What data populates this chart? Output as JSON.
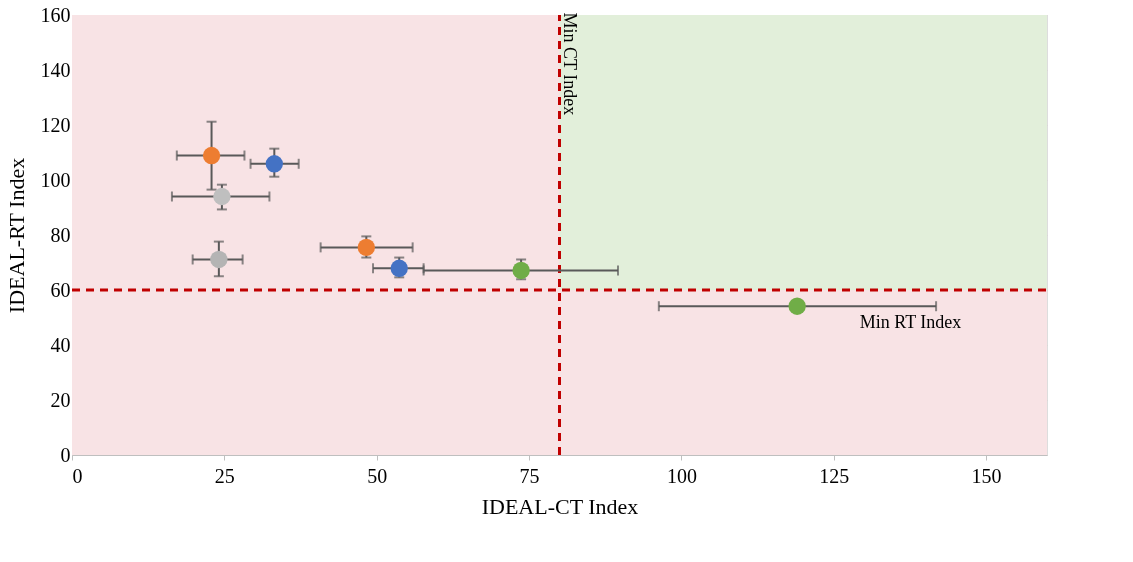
{
  "chart_data": {
    "type": "scatter",
    "xlabel": "IDEAL-CT Index",
    "ylabel": "IDEAL-RT Index",
    "x": [
      22.9,
      33.2,
      24.6,
      24.1,
      48.3,
      53.7,
      73.7,
      119.0
    ],
    "values": [
      108.9,
      105.9,
      94.0,
      71.1,
      75.5,
      67.9,
      67.1,
      54.1
    ],
    "colors": [
      "#ed7d31",
      "#4472c4",
      "#bfbfbf",
      "#b4b4b4",
      "#ed7d31",
      "#4472c4",
      "#70ad47",
      "#70ad47"
    ],
    "errors": [
      [
        96.5,
        121.2
      ],
      [
        101.2,
        111.4
      ],
      [
        89.3,
        98.3
      ],
      [
        65.0,
        77.6
      ],
      [
        71.8,
        79.5
      ],
      [
        64.6,
        71.8
      ],
      [
        63.9,
        71.1
      ],
      null
    ],
    "xerrors": [
      [
        17.2,
        28.3
      ],
      [
        29.3,
        37.2
      ],
      [
        16.4,
        32.4
      ],
      [
        19.8,
        28.0
      ],
      [
        40.8,
        55.9
      ],
      [
        49.4,
        57.7
      ],
      [
        57.7,
        89.6
      ],
      [
        96.3,
        141.8
      ]
    ],
    "xlim": [
      0,
      160
    ],
    "ylim": [
      0,
      160
    ],
    "xticks": [
      0,
      25,
      50,
      75,
      100,
      125,
      150
    ],
    "yticks": [
      0,
      20,
      40,
      60,
      80,
      100,
      120,
      140,
      160
    ],
    "ref_lines": [
      {
        "axis": "x",
        "value": 80,
        "label": "Min CT Index",
        "color": "#c00000",
        "line_style": "dashed"
      },
      {
        "axis": "y",
        "value": 60,
        "label": "Min RT Index",
        "color": "#c00000",
        "line_style": "dashed"
      }
    ],
    "bands": [
      {
        "axis": "y",
        "from": 0,
        "to": 160,
        "color": "#f8e3e5"
      },
      {
        "axis": "x",
        "from": 80,
        "to": 160,
        "color": "#e2efda"
      }
    ],
    "grid": true,
    "marker": "circle"
  }
}
